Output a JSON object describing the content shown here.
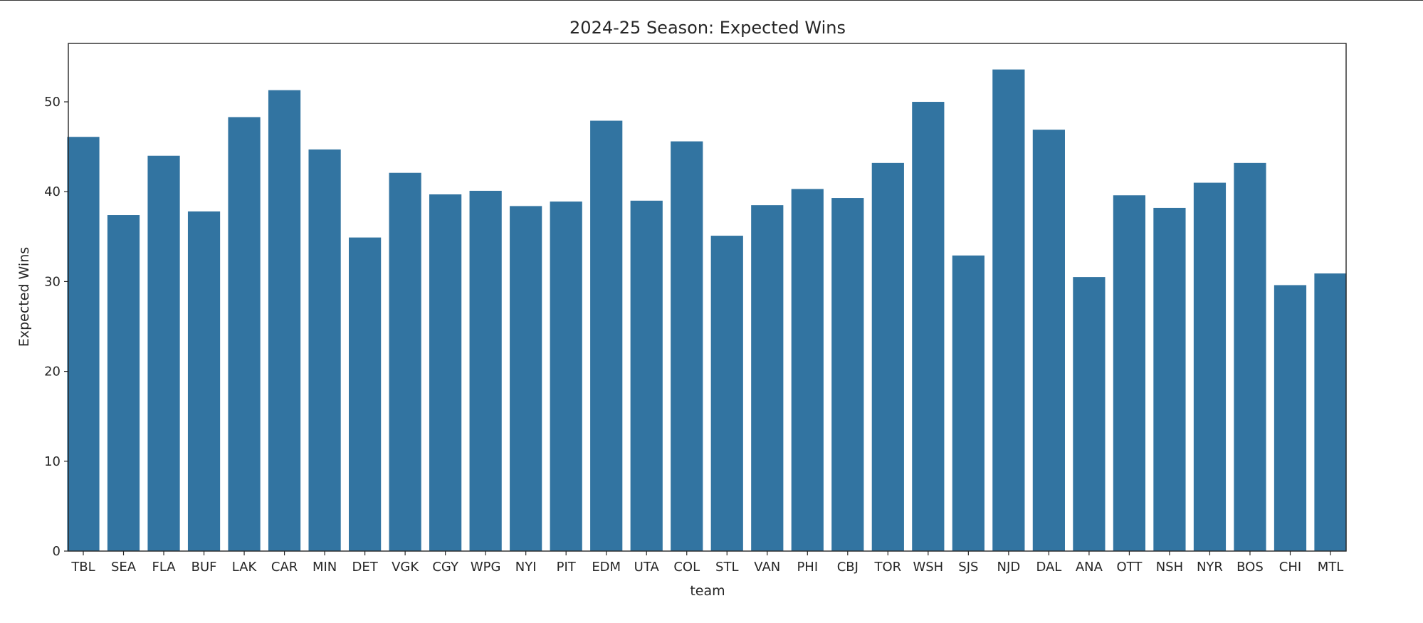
{
  "chart_data": {
    "type": "bar",
    "title": "2024-25 Season: Expected Wins",
    "xlabel": "team",
    "ylabel": "Expected Wins",
    "ylim": [
      0,
      56.5
    ],
    "yticks": [
      0,
      10,
      20,
      30,
      40,
      50
    ],
    "grid": false,
    "legend": "none",
    "bar_color": "#3274a1",
    "categories": [
      "TBL",
      "SEA",
      "FLA",
      "BUF",
      "LAK",
      "CAR",
      "MIN",
      "DET",
      "VGK",
      "CGY",
      "WPG",
      "NYI",
      "PIT",
      "EDM",
      "UTA",
      "COL",
      "STL",
      "VAN",
      "PHI",
      "CBJ",
      "TOR",
      "WSH",
      "SJS",
      "NJD",
      "DAL",
      "ANA",
      "OTT",
      "NSH",
      "NYR",
      "BOS",
      "CHI",
      "MTL"
    ],
    "values": [
      46.1,
      37.4,
      44.0,
      37.8,
      48.3,
      51.3,
      44.7,
      34.9,
      42.1,
      39.7,
      40.1,
      38.4,
      38.9,
      47.9,
      39.0,
      45.6,
      35.1,
      38.5,
      40.3,
      39.3,
      43.2,
      50.0,
      32.9,
      53.6,
      46.9,
      30.5,
      39.6,
      38.2,
      41.0,
      43.2,
      29.6,
      30.9
    ]
  }
}
